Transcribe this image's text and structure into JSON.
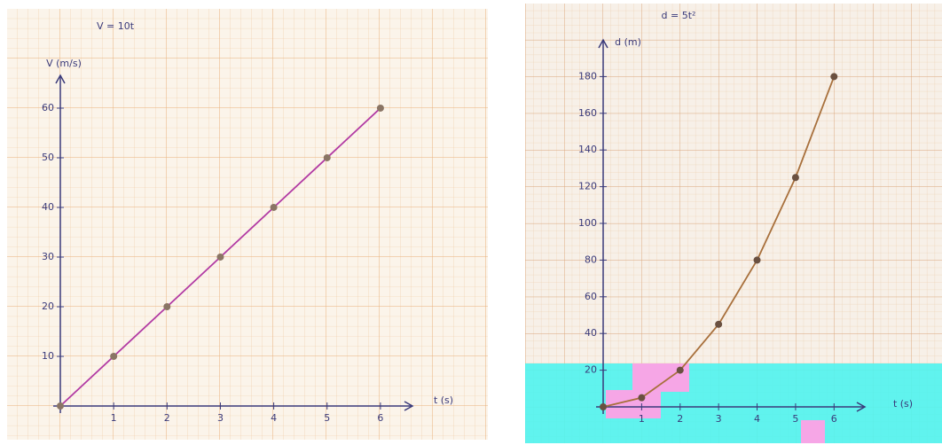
{
  "chart_data": [
    {
      "type": "line",
      "title": "V = 10t",
      "y_label": "V (m/s)",
      "x_label": "t (s)",
      "x": [
        0,
        1,
        2,
        3,
        4,
        5,
        6
      ],
      "values": [
        0,
        10,
        20,
        30,
        40,
        50,
        60
      ],
      "color": "#b23aa3",
      "marker_color": "#8a7565",
      "xlim": [
        0,
        6.6
      ],
      "ylim": [
        0,
        66.6
      ],
      "xticks": [
        1,
        2,
        3,
        4,
        5,
        6
      ],
      "yticks": [
        10,
        20,
        30,
        40,
        50,
        60
      ]
    },
    {
      "type": "line",
      "title": "d = 5t²",
      "y_label": "d (m)",
      "x_label": "t (s)",
      "x": [
        0,
        1,
        2,
        3,
        4,
        5,
        6
      ],
      "values": [
        0,
        5,
        20,
        45,
        80,
        125,
        180
      ],
      "color": "#a8703c",
      "marker_color": "#6a5040",
      "xlim": [
        0,
        6.8
      ],
      "ylim": [
        0,
        200
      ],
      "xticks": [
        1,
        2,
        3,
        4,
        5,
        6
      ],
      "yticks": [
        20,
        40,
        60,
        80,
        100,
        120,
        140,
        160,
        180
      ]
    }
  ]
}
